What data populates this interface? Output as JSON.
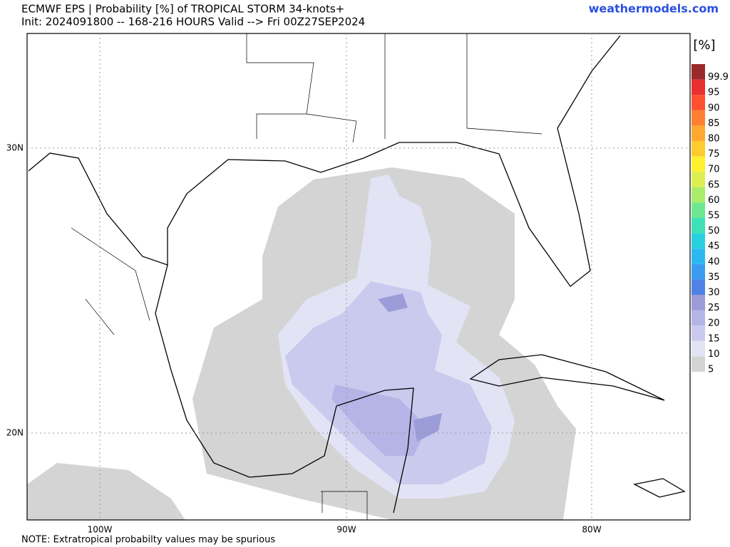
{
  "header": {
    "title": "ECMWF EPS | Probability [%] of TROPICAL STORM 34-knots+",
    "subtitle": "Init: 2024091800 -- 168-216 HOURS Valid --> Fri 00Z27SEP2024",
    "site": "weathermodels.com"
  },
  "map": {
    "lat_labels": [
      "30N",
      "20N"
    ],
    "lon_labels": [
      "100W",
      "90W",
      "80W"
    ]
  },
  "colorbar": {
    "unit": "[%]",
    "levels": [
      {
        "label": "5",
        "color": "#d4d4d4"
      },
      {
        "label": "10",
        "color": "#e3e3f6"
      },
      {
        "label": "15",
        "color": "#cacaee"
      },
      {
        "label": "20",
        "color": "#b4b4e6"
      },
      {
        "label": "25",
        "color": "#9c9cd8"
      },
      {
        "label": "30",
        "color": "#4f82e6"
      },
      {
        "label": "35",
        "color": "#3a9cf0"
      },
      {
        "label": "40",
        "color": "#2ab8f0"
      },
      {
        "label": "45",
        "color": "#28d0e0"
      },
      {
        "label": "50",
        "color": "#3ee0b8"
      },
      {
        "label": "55",
        "color": "#6ee890"
      },
      {
        "label": "60",
        "color": "#a8ec6a"
      },
      {
        "label": "65",
        "color": "#dcef50"
      },
      {
        "label": "70",
        "color": "#fff030"
      },
      {
        "label": "75",
        "color": "#ffcc30"
      },
      {
        "label": "80",
        "color": "#ffa830"
      },
      {
        "label": "85",
        "color": "#ff8030"
      },
      {
        "label": "90",
        "color": "#ff5030"
      },
      {
        "label": "95",
        "color": "#e83030"
      },
      {
        "label": "99.9",
        "color": "#9a2a2a"
      }
    ]
  },
  "footer": {
    "note": "NOTE: Extratropical probabilty values may be spurious"
  }
}
